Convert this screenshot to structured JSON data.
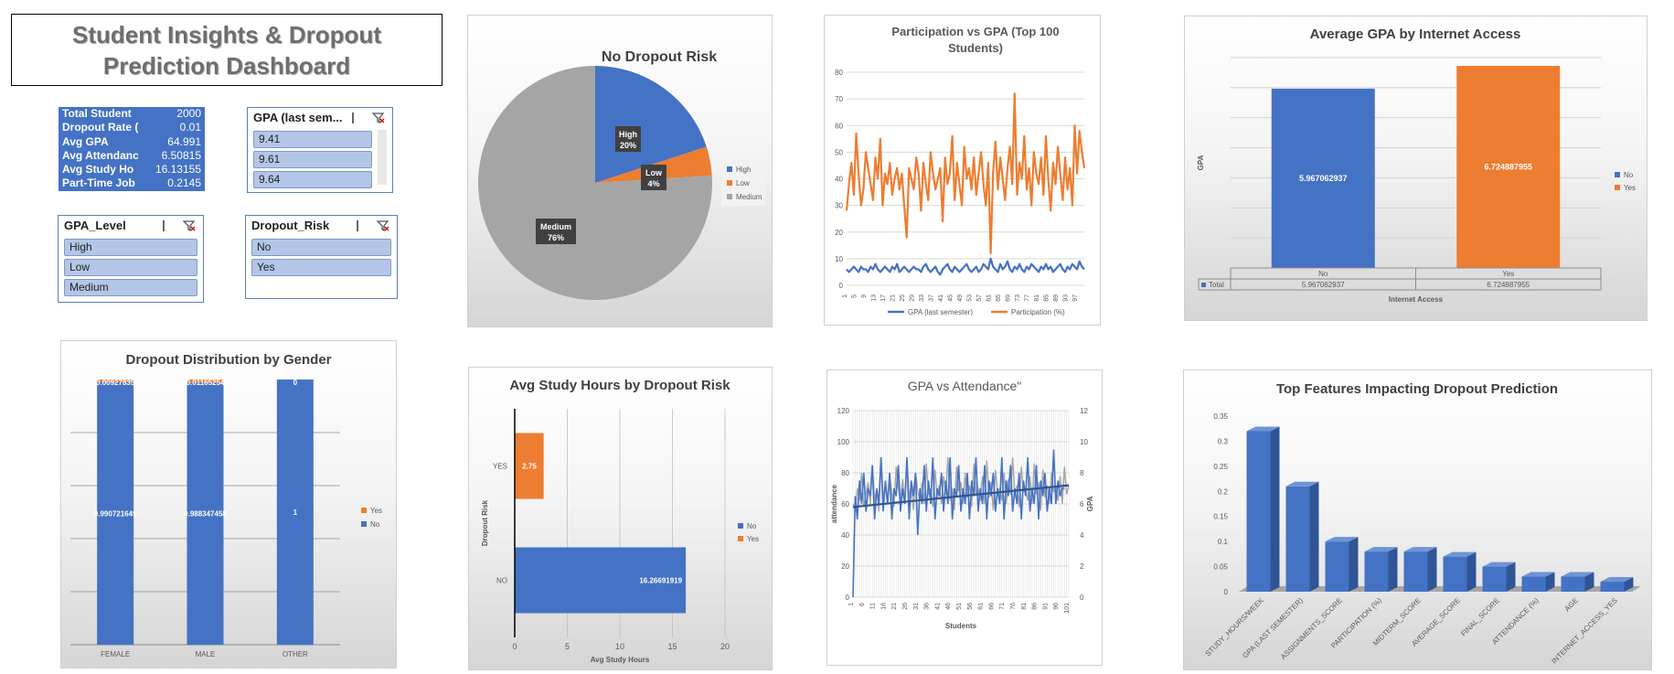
{
  "dashboard_title": "Student Insights & Dropout Prediction Dashboard",
  "kpis": [
    {
      "label": "Total Student",
      "value": "2000"
    },
    {
      "label": "Dropout Rate (",
      "value": "0.01"
    },
    {
      "label": "Avg GPA",
      "value": "64.991"
    },
    {
      "label": "Avg Attendanc",
      "value": "6.50815"
    },
    {
      "label": "Avg Study Ho",
      "value": "16.13155"
    },
    {
      "label": "Part-Time Job",
      "value": "0.2145"
    }
  ],
  "slicers": {
    "gpa": {
      "title": "GPA (last sem...",
      "items": [
        "9.41",
        "9.61",
        "9.64"
      ]
    },
    "gpa_level": {
      "title": "GPA_Level",
      "items": [
        "High",
        "Low",
        "Medium"
      ]
    },
    "dropout_risk": {
      "title": "Dropout_Risk",
      "items": [
        "No",
        "Yes"
      ]
    }
  },
  "chart_data": [
    {
      "id": "pie",
      "type": "pie",
      "title": "No Dropout Risk",
      "labels": [
        "High",
        "Low",
        "Medium"
      ],
      "values": [
        20,
        4,
        76
      ],
      "data_labels": [
        "High\n20%",
        "Low\n4%",
        "Medium\n76%"
      ],
      "colors": [
        "#4472c4",
        "#ed7d31",
        "#a5a5a5"
      ],
      "legend": "right"
    },
    {
      "id": "participation",
      "type": "line",
      "title": "Participation vs GPA (Top 100 Students)",
      "y_ticks": [
        0,
        10,
        20,
        30,
        40,
        50,
        60,
        70,
        80
      ],
      "ylim": [
        0,
        80
      ],
      "x_ticks": [
        "1",
        "5",
        "9",
        "13",
        "17",
        "21",
        "25",
        "29",
        "33",
        "37",
        "41",
        "45",
        "49",
        "53",
        "57",
        "61",
        "65",
        "69",
        "73",
        "77",
        "81",
        "85",
        "89",
        "93",
        "97"
      ],
      "grid": true,
      "legend": "bottom",
      "series": [
        {
          "name": "GPA (last semester)",
          "color": "#4472c4",
          "values": [
            6,
            5,
            6,
            7,
            6,
            5,
            7,
            6,
            6,
            5,
            7,
            6,
            8,
            6,
            5,
            6,
            7,
            6,
            5,
            7,
            6,
            8,
            5,
            6,
            7,
            6,
            5,
            6,
            7,
            6,
            6,
            5,
            7,
            8,
            6,
            5,
            6,
            7,
            5,
            4,
            6,
            7,
            8,
            6,
            5,
            7,
            6,
            5,
            6,
            7,
            8,
            6,
            5,
            6,
            7,
            5,
            6,
            8,
            7,
            6,
            10,
            7,
            6,
            5,
            8,
            6,
            7,
            9,
            6,
            5,
            7,
            6,
            8,
            6,
            5,
            7,
            6,
            8,
            7,
            6,
            5,
            7,
            6,
            8,
            6,
            7,
            5,
            6,
            7,
            8,
            6,
            5,
            7,
            6,
            8,
            7,
            6,
            9,
            7,
            6
          ]
        },
        {
          "name": "Participation (%)",
          "color": "#ed7d31",
          "values": [
            28,
            38,
            46,
            34,
            57,
            42,
            30,
            36,
            50,
            44,
            38,
            32,
            48,
            40,
            55,
            30,
            42,
            38,
            46,
            34,
            40,
            44,
            36,
            42,
            30,
            18,
            44,
            40,
            36,
            48,
            42,
            28,
            46,
            38,
            32,
            50,
            42,
            36,
            40,
            44,
            24,
            48,
            38,
            42,
            56,
            32,
            46,
            38,
            30,
            52,
            40,
            44,
            36,
            48,
            34,
            42,
            50,
            38,
            30,
            46,
            12,
            42,
            54,
            36,
            48,
            40,
            32,
            44,
            52,
            38,
            72,
            34,
            46,
            40,
            56,
            36,
            44,
            30,
            50,
            42,
            38,
            48,
            34,
            56,
            40,
            28,
            46,
            38,
            52,
            42,
            32,
            48,
            36,
            44,
            30,
            60,
            42,
            58,
            50,
            44
          ]
        }
      ]
    },
    {
      "id": "internet",
      "type": "bar",
      "title": "Average GPA by Internet Access",
      "categories": [
        "No",
        "Yes"
      ],
      "values": [
        5.967062937,
        6.724887955
      ],
      "value_labels": [
        "5.967062937",
        "6.724887955"
      ],
      "colors": [
        "#4472c4",
        "#ed7d31"
      ],
      "ylabel": "GPA",
      "xlabel": "Internet Access",
      "ylim": [
        0,
        7
      ],
      "grid": true,
      "legend": [
        "No",
        "Yes"
      ],
      "data_table": {
        "row_label": "Total",
        "values": [
          "5.967062937",
          "6.724887955"
        ]
      }
    },
    {
      "id": "gender",
      "type": "bar",
      "title": "Dropout Distribution by Gender",
      "categories": [
        "FEMALE",
        "MALE",
        "OTHER"
      ],
      "series": [
        {
          "name": "No",
          "color": "#4472c4",
          "values": [
            0.990721649,
            0.988347458,
            1
          ],
          "labels": [
            "0.990721649",
            "0.988347458",
            "1"
          ]
        },
        {
          "name": "Yes",
          "color": "#ed7d31",
          "values": [
            0.009278351,
            0.011652542,
            0
          ],
          "labels": [
            "0.00927835",
            "0.01165254",
            "0"
          ]
        }
      ],
      "ylim": [
        0,
        1
      ],
      "grid": true,
      "legend": [
        "Yes",
        "No"
      ]
    },
    {
      "id": "study",
      "type": "bar",
      "orientation": "horizontal",
      "title": "Avg Study Hours by Dropout Risk",
      "categories": [
        "YES",
        "NO"
      ],
      "values": [
        2.75,
        16.26691919
      ],
      "value_labels": [
        "2.75",
        "16.26691919"
      ],
      "colors": [
        "#ed7d31",
        "#4472c4"
      ],
      "xlabel": "Avg Study Hours",
      "ylabel": "Dropout Risk",
      "x_ticks": [
        0,
        5,
        10,
        15,
        20
      ],
      "xlim": [
        0,
        20
      ],
      "grid": true,
      "legend": [
        "No",
        "Yes"
      ]
    },
    {
      "id": "attendance",
      "type": "line",
      "title": "GPA vs Attendance\"",
      "xlabel": "Students",
      "ylabel": "attendance",
      "y2label": "GPA",
      "y_ticks": [
        0,
        20,
        40,
        60,
        80,
        100,
        120
      ],
      "y2_ticks": [
        0,
        2,
        4,
        6,
        8,
        10,
        12
      ],
      "ylim": [
        0,
        120
      ],
      "y2lim": [
        0,
        12
      ],
      "x_ticks": [
        "1",
        "6",
        "11",
        "16",
        "21",
        "26",
        "31",
        "36",
        "41",
        "46",
        "51",
        "56",
        "61",
        "66",
        "71",
        "76",
        "81",
        "86",
        "91",
        "96",
        "101"
      ],
      "grid": true,
      "series": [
        {
          "name": "attendance",
          "color": "#a5a5a5",
          "values": [
            60,
            55,
            70,
            62,
            80,
            58,
            66,
            74,
            60,
            85,
            62,
            70,
            55,
            90,
            64,
            72,
            60,
            78,
            66,
            58,
            84,
            70,
            62,
            76,
            60,
            88,
            64,
            72,
            56,
            80,
            68,
            62,
            74,
            60,
            86,
            66,
            70,
            58,
            82,
            64,
            72,
            60,
            78,
            66,
            90,
            62,
            70,
            56,
            84,
            68,
            74,
            60,
            80,
            64,
            72,
            58,
            86,
            66,
            70,
            62,
            78,
            60,
            88,
            64,
            74,
            56,
            82,
            68,
            70,
            62,
            80,
            60,
            76,
            66,
            90,
            64,
            72,
            58,
            84,
            68,
            70,
            62,
            78,
            60,
            86,
            66,
            74,
            56,
            82,
            64,
            72,
            60,
            80,
            68,
            70,
            62,
            78,
            60,
            84,
            66,
            72
          ]
        },
        {
          "name": "GPA",
          "color": "#4472c4",
          "values": [
            0,
            6.5,
            5,
            7.5,
            6,
            8,
            5.5,
            7,
            6.5,
            8.5,
            5,
            7,
            6,
            9,
            5.5,
            7.5,
            6,
            8,
            5,
            7,
            6.5,
            8.5,
            5.5,
            7,
            6,
            9,
            5,
            7.5,
            6.5,
            8,
            4,
            7,
            6,
            8.5,
            5.5,
            7.5,
            6,
            9,
            5,
            7,
            6.5,
            8,
            5.5,
            7.5,
            6,
            9,
            5,
            7,
            6.5,
            8.5,
            5.5,
            7,
            6,
            8,
            5,
            7.5,
            6.5,
            9,
            5.5,
            7,
            6,
            8.5,
            5,
            7.5,
            6.5,
            8,
            5.5,
            7,
            6,
            9,
            5,
            7.5,
            6.5,
            8.5,
            5.5,
            7,
            6,
            8,
            5,
            7.5,
            6.5,
            9,
            5.5,
            7,
            6,
            8.5,
            5,
            7.5,
            6.5,
            8,
            5.5,
            7,
            6,
            9.5,
            6,
            7.5,
            6.5,
            7,
            7
          ]
        }
      ],
      "trendline": [
        5.8,
        7.2
      ]
    },
    {
      "id": "features",
      "type": "bar",
      "title": "Top Features Impacting Dropout Prediction",
      "categories": [
        "STUDY_HOURS/WEEK",
        "GPA (LAST SEMESTER)",
        "ASSIGNMENTS_SCORE",
        "PARTICIPATION (%)",
        "MIDTERM_SCORE",
        "AVERAGE_SCORE",
        "FINAL_SCORE",
        "ATTENDANCE (%)",
        "AGE",
        "INTERNET_ACCESS_YES"
      ],
      "values": [
        0.32,
        0.21,
        0.1,
        0.08,
        0.08,
        0.07,
        0.05,
        0.03,
        0.03,
        0.02
      ],
      "y_ticks": [
        "0",
        "0.05",
        "0.1",
        "0.15",
        "0.2",
        "0.25",
        "0.3",
        "0.35"
      ],
      "ylim": [
        0,
        0.35
      ],
      "color": "#4472c4"
    }
  ]
}
